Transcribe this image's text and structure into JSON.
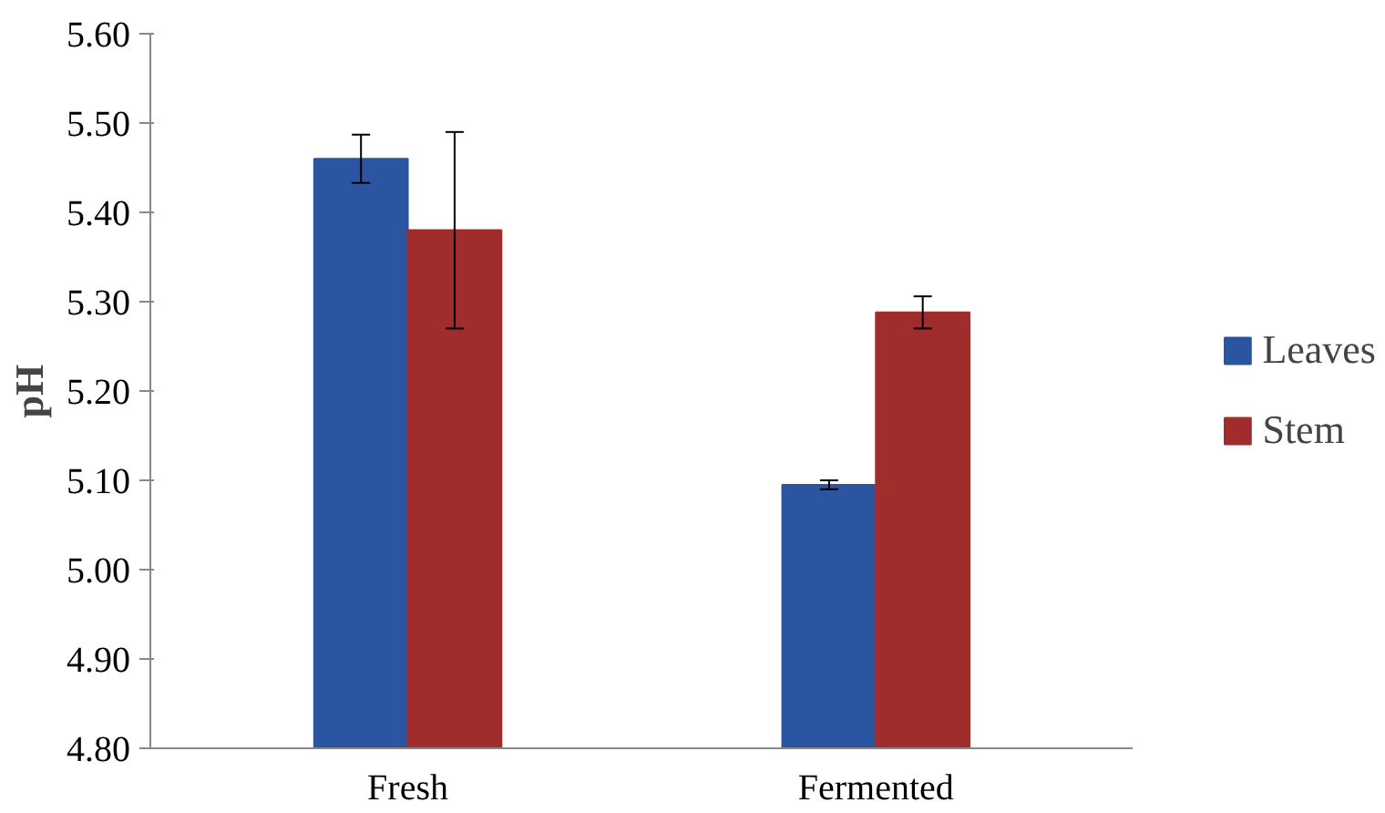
{
  "chart_data": {
    "type": "bar",
    "ylabel": "pH",
    "categories": [
      "Fresh",
      "Fermented"
    ],
    "series": [
      {
        "name": "Leaves",
        "color": "#2b55a0",
        "values": [
          5.46,
          5.095
        ],
        "errors": [
          0.027,
          0.005
        ]
      },
      {
        "name": "Stem",
        "color": "#a12c2c",
        "values": [
          5.38,
          5.288
        ],
        "errors": [
          0.11,
          0.018
        ]
      }
    ],
    "ylim": [
      4.8,
      5.6
    ],
    "yticks": [
      {
        "value": 4.8,
        "label": "4.80"
      },
      {
        "value": 4.9,
        "label": "4.90"
      },
      {
        "value": 5.0,
        "label": "5.00"
      },
      {
        "value": 5.1,
        "label": "5.10"
      },
      {
        "value": 5.2,
        "label": "5.20"
      },
      {
        "value": 5.3,
        "label": "5.30"
      },
      {
        "value": 5.4,
        "label": "5.40"
      },
      {
        "value": 5.5,
        "label": "5.50"
      },
      {
        "value": 5.6,
        "label": "5.60"
      }
    ],
    "grid": false,
    "legend": "right"
  }
}
